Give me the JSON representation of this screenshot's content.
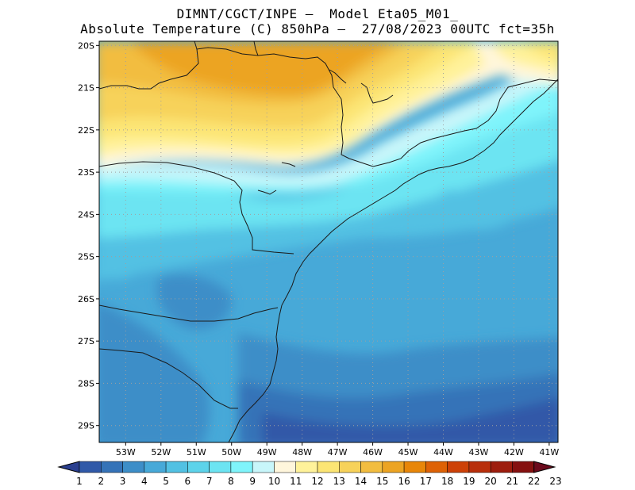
{
  "header": {
    "line1": "DIMNT/CGCT/INPE –  Model Eta05_M01_",
    "line2": "Absolute Temperature (C) 850hPa –  27/08/2023 00UTC fct=35h"
  },
  "map": {
    "lon_range": [
      -53.75,
      -40.75
    ],
    "lat_range": [
      -29.4,
      -19.9
    ],
    "lat_labels": [
      "20S",
      "21S",
      "22S",
      "23S",
      "24S",
      "25S",
      "26S",
      "27S",
      "28S",
      "29S"
    ],
    "lon_labels": [
      "53W",
      "52W",
      "51W",
      "50W",
      "49W",
      "48W",
      "47W",
      "46W",
      "45W",
      "44W",
      "43W",
      "42W",
      "41W"
    ],
    "field": "850hPa absolute temperature",
    "gridlines": "dotted"
  },
  "colorbar": {
    "labels": [
      "1",
      "2",
      "3",
      "4",
      "5",
      "6",
      "7",
      "8",
      "9",
      "10",
      "11",
      "12",
      "13",
      "14",
      "15",
      "16",
      "17",
      "18",
      "19",
      "20",
      "21",
      "22",
      "23"
    ],
    "colors": [
      "#2a3f8f",
      "#3059a8",
      "#3573b8",
      "#3d8ec8",
      "#47a9d8",
      "#52c1e3",
      "#5dd3ea",
      "#6ce4f2",
      "#7ff4fb",
      "#c8f6fa",
      "#fff6dc",
      "#fff29a",
      "#fce574",
      "#f7d25a",
      "#f2bd40",
      "#eca423",
      "#e88608",
      "#de6206",
      "#cd4107",
      "#b82f0b",
      "#9d1d0d",
      "#851110",
      "#6b0a1c"
    ]
  }
}
